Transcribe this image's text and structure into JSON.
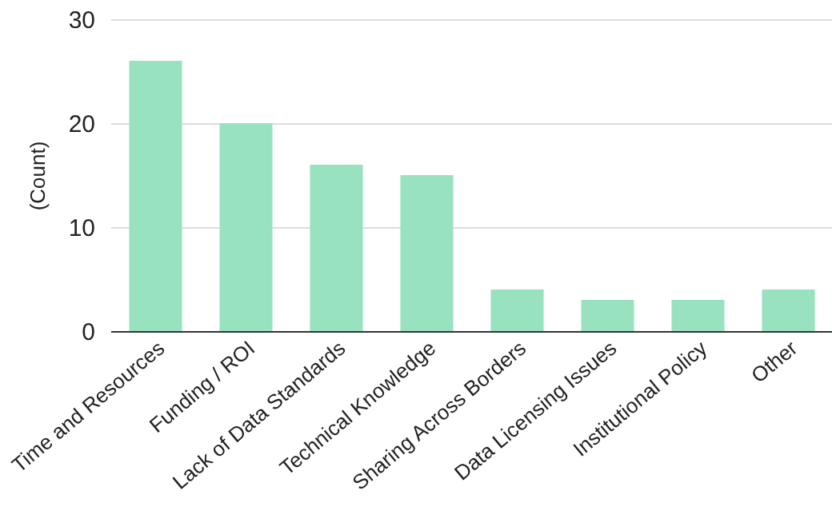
{
  "chart_data": {
    "type": "bar",
    "ylabel": "(Count)",
    "categories": [
      "Time and Resources",
      "Funding / ROI",
      "Lack of Data Standards",
      "Technical Knowledge",
      "Sharing Across Borders",
      "Data Licensing Issues",
      "Institutional Policy",
      "Other"
    ],
    "values": [
      26,
      20,
      16,
      15,
      4,
      3,
      3,
      4
    ],
    "color": "#98e2c0",
    "ylim": [
      0,
      30
    ],
    "yticks": [
      0,
      10,
      20,
      30
    ],
    "grid": true
  }
}
